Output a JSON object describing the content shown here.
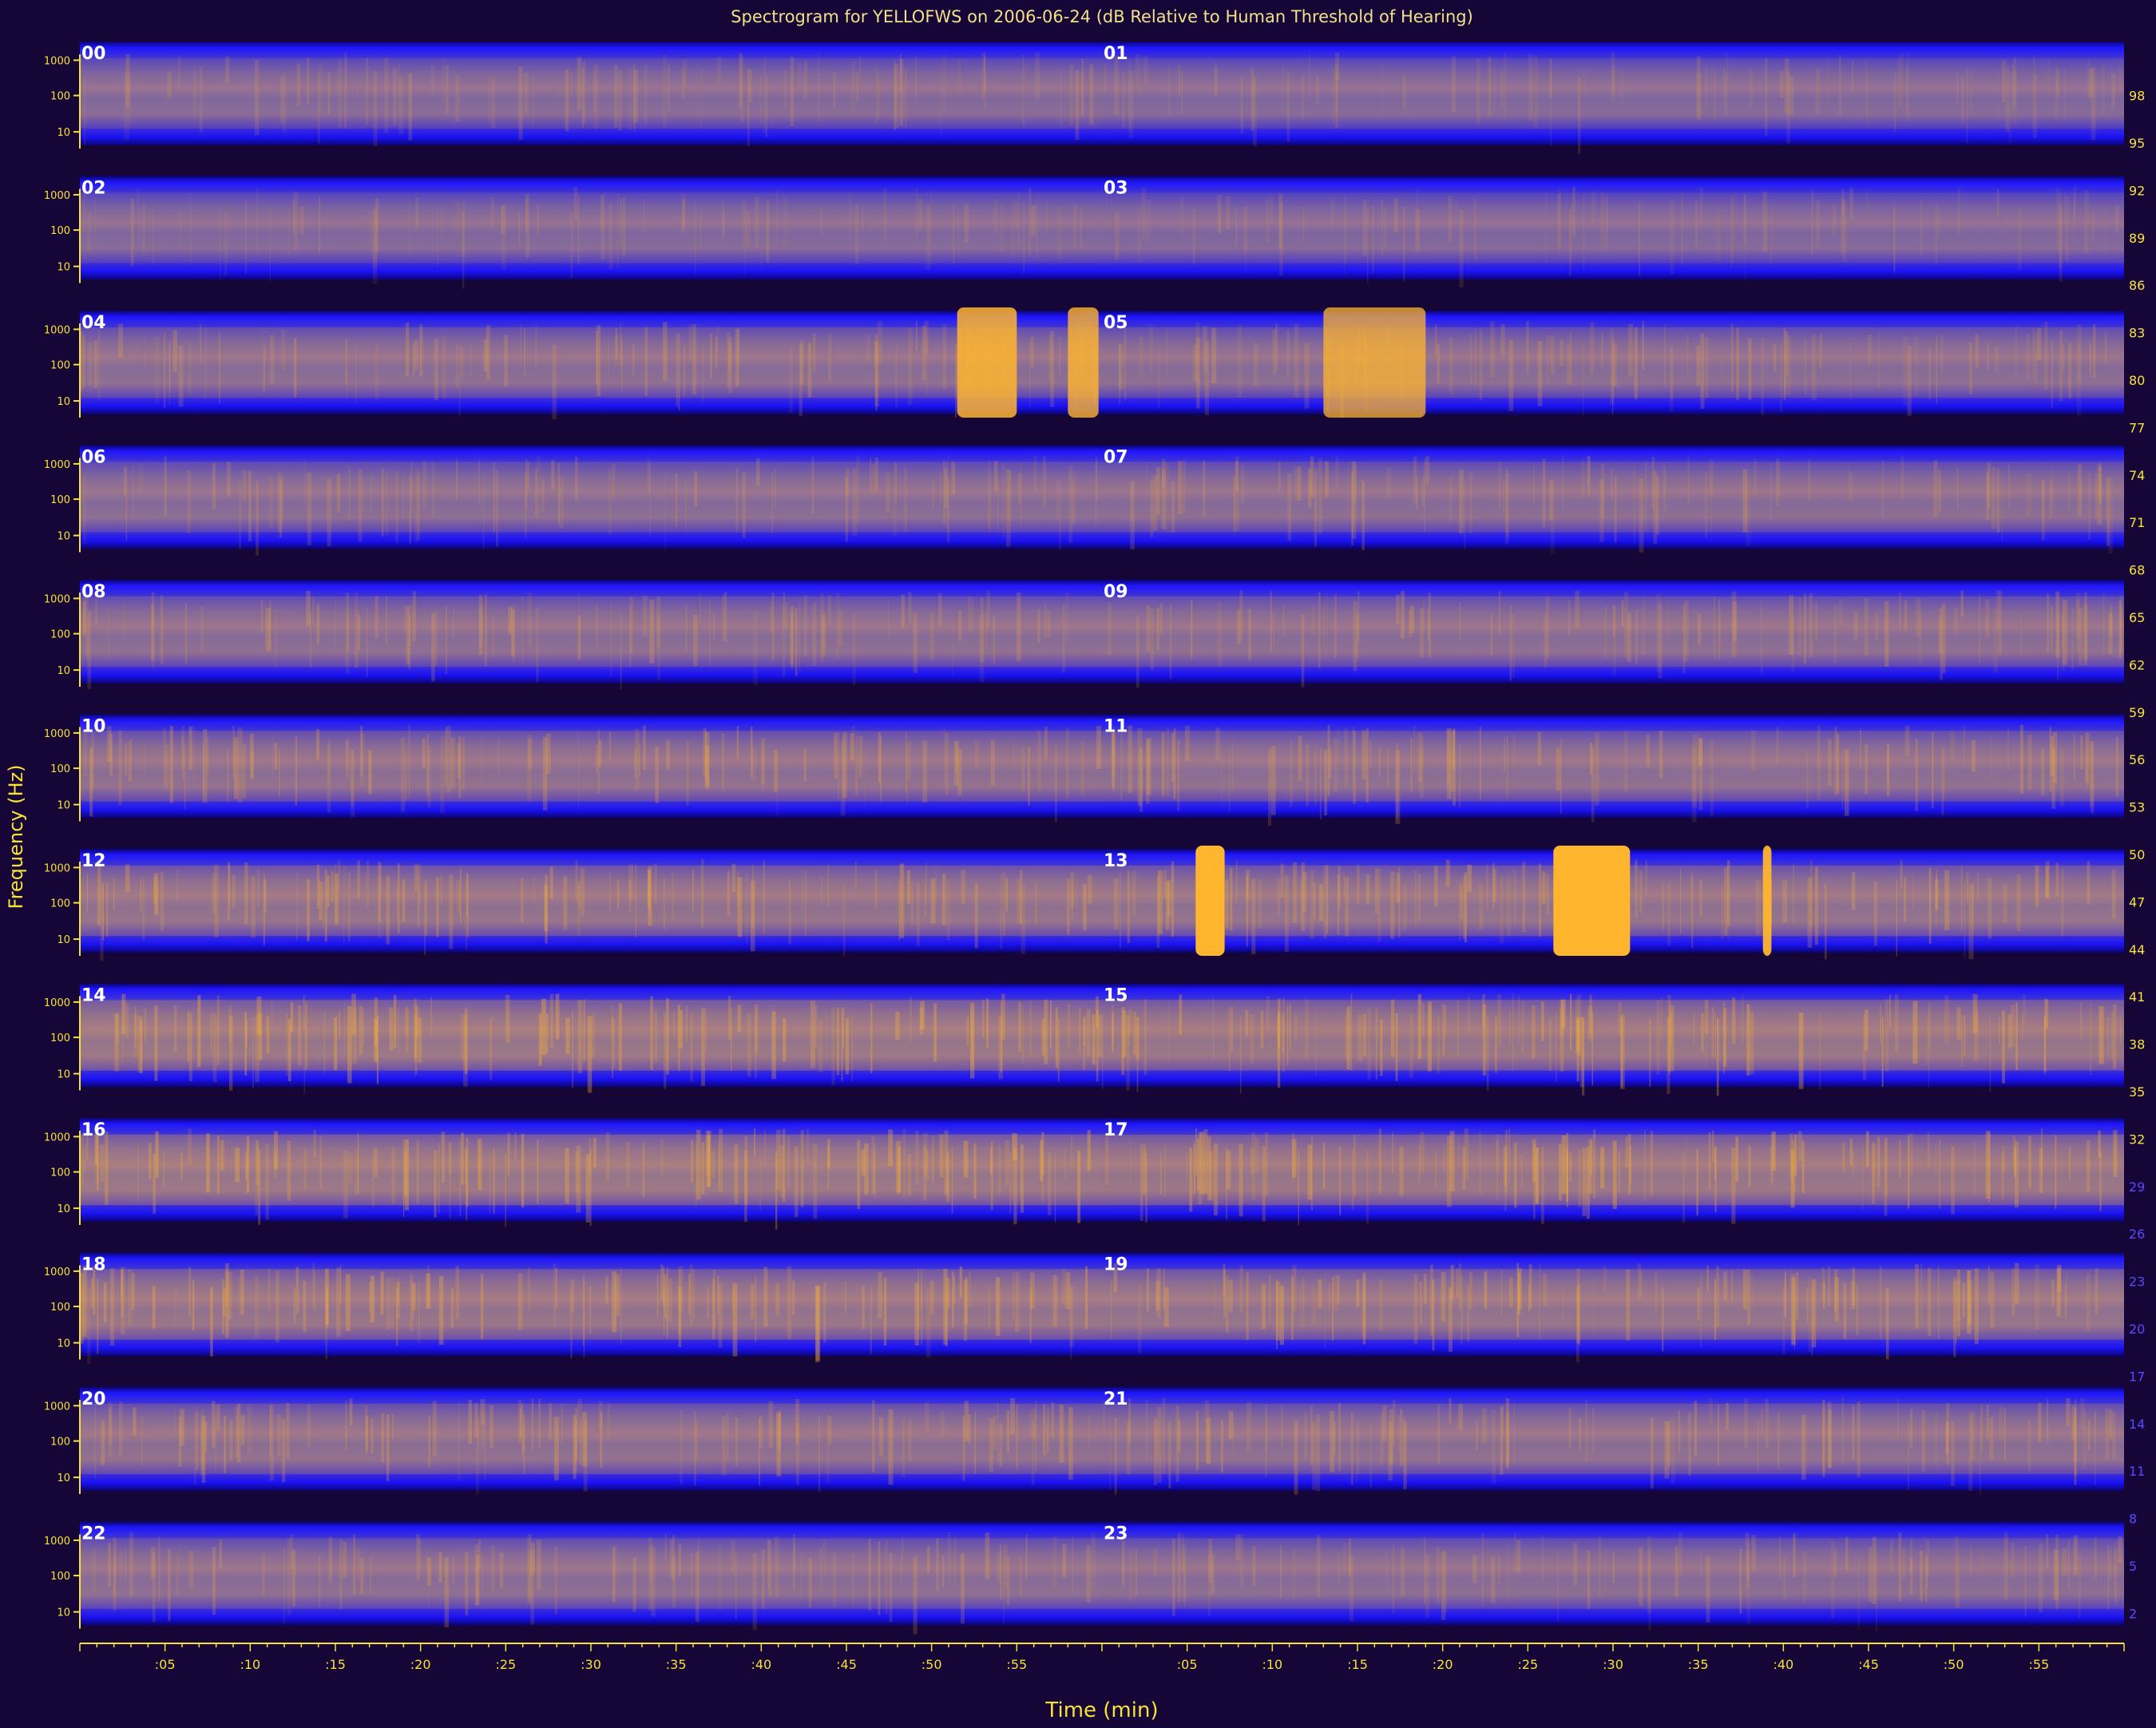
{
  "chart_data": {
    "type": "heatmap",
    "title": "Spectrogram for YELLOFWS on 2006-06-24 (dB Relative to Human Threshold of Hearing)",
    "xlabel": "Time (min)",
    "ylabel": "Frequency (Hz)",
    "y_tick_labels": [
      "1000",
      "100",
      "10"
    ],
    "x_tick_labels": [
      ":05",
      ":10",
      ":15",
      ":20",
      ":25",
      ":30",
      ":35",
      ":40",
      ":45",
      ":50",
      ":55"
    ],
    "hour_labels": [
      "00",
      "01",
      "02",
      "03",
      "04",
      "05",
      "06",
      "07",
      "08",
      "09",
      "10",
      "11",
      "12",
      "13",
      "14",
      "15",
      "16",
      "17",
      "18",
      "19",
      "20",
      "21",
      "22",
      "23"
    ],
    "hour_intensity": [
      0.35,
      0.3,
      0.3,
      0.28,
      0.45,
      0.42,
      0.4,
      0.42,
      0.45,
      0.45,
      0.52,
      0.5,
      0.6,
      0.58,
      0.72,
      0.7,
      0.72,
      0.7,
      0.66,
      0.62,
      0.52,
      0.5,
      0.45,
      0.42
    ],
    "hot_spots": [
      {
        "hour": "13",
        "start_min": 5.5,
        "end_min": 7.2,
        "intensity": 1.0
      },
      {
        "hour": "13",
        "start_min": 26.5,
        "end_min": 31.0,
        "intensity": 1.0
      },
      {
        "hour": "13",
        "start_min": 38.8,
        "end_min": 39.3,
        "intensity": 0.95
      },
      {
        "hour": "04",
        "start_min": 51.5,
        "end_min": 55.0,
        "intensity": 0.85
      },
      {
        "hour": "04",
        "start_min": 58.0,
        "end_min": 59.8,
        "intensity": 0.8
      },
      {
        "hour": "05",
        "start_min": 13.0,
        "end_min": 19.0,
        "intensity": 0.75
      }
    ],
    "colorbar_ticks": [
      98,
      95,
      92,
      89,
      86,
      83,
      80,
      77,
      74,
      71,
      68,
      65,
      62,
      59,
      56,
      53,
      50,
      47,
      44,
      41,
      38,
      35,
      32,
      29,
      26,
      23,
      20,
      17,
      14,
      11,
      8,
      5,
      2
    ],
    "colorbar_range": [
      0,
      100
    ],
    "colors": {
      "background": "#150637",
      "band_dark": "#0b0470",
      "band_blue": "#1a14f0",
      "mid_purple": "#6a56b8",
      "hot": "#ffb52e",
      "axis": "#f7e23a",
      "title_text": "#f0e08a",
      "hour_label": "#ffffff"
    }
  }
}
